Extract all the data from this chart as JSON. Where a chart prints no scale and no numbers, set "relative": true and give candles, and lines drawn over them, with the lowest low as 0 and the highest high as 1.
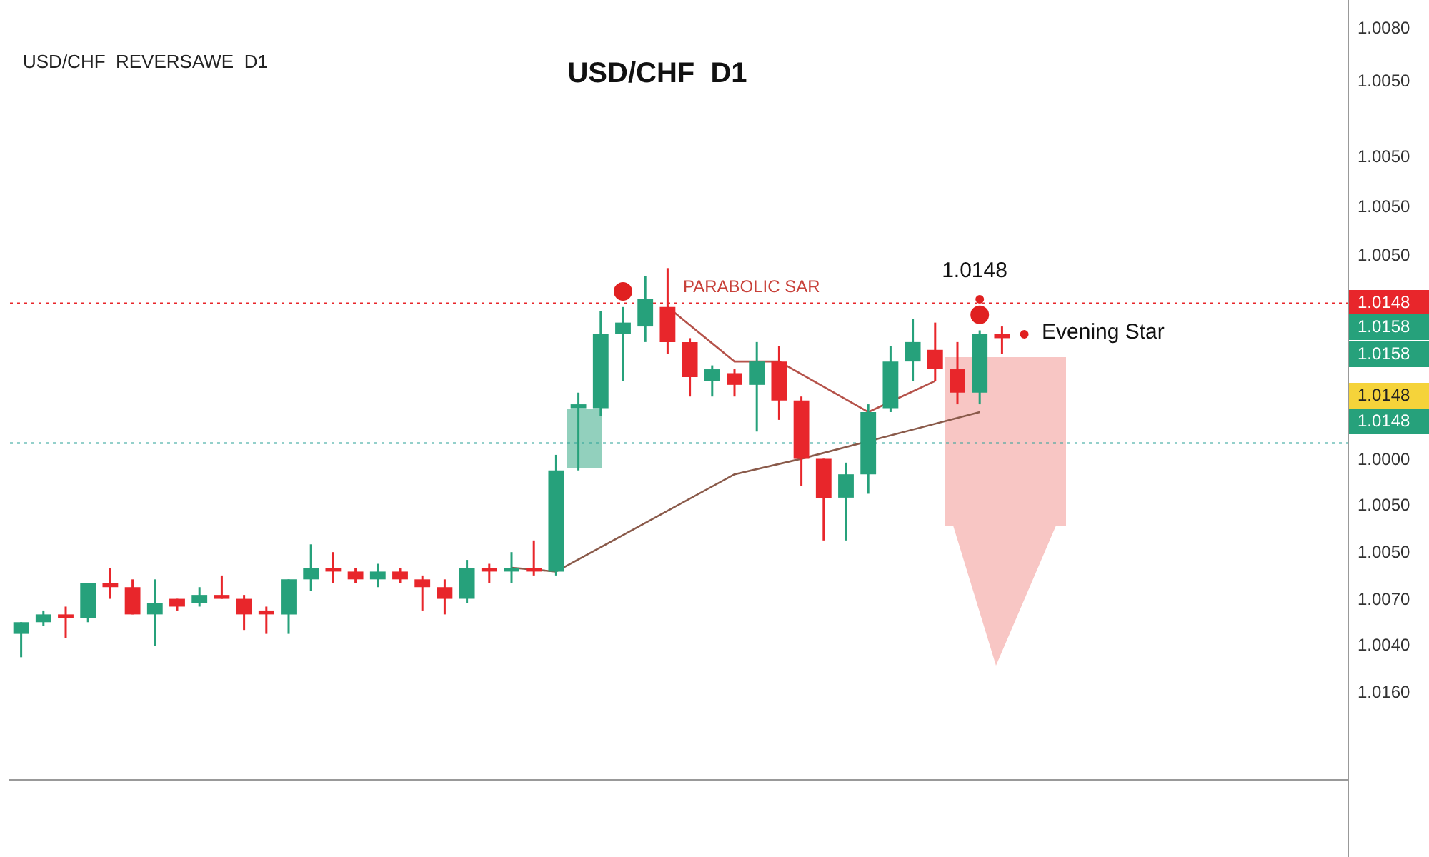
{
  "chart_data": {
    "type": "candlestick",
    "title": "USD/CHF  D1",
    "subtitle": "USD/CHF  REVERSAWE  D1",
    "relative": true,
    "categories": [
      null,
      null,
      null,
      null,
      null,
      null,
      null,
      null,
      null,
      null,
      null,
      null,
      null,
      null,
      null,
      null,
      null,
      null,
      null,
      null,
      null,
      null,
      null,
      null,
      null,
      null,
      null,
      null,
      null,
      null,
      null,
      null,
      null,
      null,
      null,
      null,
      null,
      null,
      null,
      null,
      null,
      null,
      null,
      null,
      null,
      null,
      null,
      null,
      null,
      null,
      null,
      null,
      null,
      null,
      null,
      null,
      null,
      null,
      null,
      null
    ],
    "ohlc": [
      [
        0.06,
        0.09,
        0,
        0.09
      ],
      [
        0.09,
        0.12,
        0.08,
        0.11
      ],
      [
        0.11,
        0.13,
        0.05,
        0.1
      ],
      [
        0.1,
        0.19,
        0.09,
        0.19
      ],
      [
        0.19,
        0.23,
        0.15,
        0.18
      ],
      [
        0.18,
        0.2,
        0.11,
        0.11
      ],
      [
        0.11,
        0.2,
        0.03,
        0.14
      ],
      [
        0.15,
        0.15,
        0.12,
        0.13
      ],
      [
        0.14,
        0.18,
        0.13,
        0.16
      ],
      [
        0.16,
        0.21,
        0.15,
        0.15
      ],
      [
        0.15,
        0.16,
        0.07,
        0.11
      ],
      [
        0.12,
        0.13,
        0.06,
        0.11
      ],
      [
        0.11,
        0.2,
        0.06,
        0.2
      ],
      [
        0.2,
        0.29,
        0.17,
        0.23
      ],
      [
        0.23,
        0.27,
        0.19,
        0.22
      ],
      [
        0.22,
        0.23,
        0.19,
        0.2
      ],
      [
        0.2,
        0.24,
        0.18,
        0.22
      ],
      [
        0.22,
        0.23,
        0.19,
        0.2
      ],
      [
        0.2,
        0.21,
        0.12,
        0.18
      ],
      [
        0.18,
        0.2,
        0.11,
        0.15
      ],
      [
        0.15,
        0.25,
        0.14,
        0.23
      ],
      [
        0.23,
        0.24,
        0.19,
        0.22
      ],
      [
        0.22,
        0.27,
        0.19,
        0.23
      ],
      [
        0.23,
        0.3,
        0.21,
        0.22
      ],
      [
        0.22,
        0.52,
        0.21,
        0.48
      ],
      [
        0.64,
        0.68,
        0.48,
        0.65
      ],
      [
        0.64,
        0.89,
        0.62,
        0.83
      ],
      [
        0.83,
        0.9,
        0.71,
        0.86
      ],
      [
        0.85,
        0.98,
        0.81,
        0.92
      ],
      [
        0.9,
        1,
        0.78,
        0.81
      ],
      [
        0.81,
        0.82,
        0.67,
        0.72
      ],
      [
        0.71,
        0.75,
        0.67,
        0.74
      ],
      [
        0.73,
        0.74,
        0.67,
        0.7
      ],
      [
        0.7,
        0.81,
        0.58,
        0.76
      ],
      [
        0.76,
        0.8,
        0.61,
        0.66
      ],
      [
        0.66,
        0.67,
        0.44,
        0.51
      ],
      [
        0.51,
        0.51,
        0.3,
        0.41
      ],
      [
        0.41,
        0.5,
        0.3,
        0.47
      ],
      [
        0.47,
        0.65,
        0.42,
        0.63
      ],
      [
        0.64,
        0.8,
        0.63,
        0.76
      ],
      [
        0.76,
        0.87,
        0.71,
        0.81
      ],
      [
        0.79,
        0.86,
        0.71,
        0.74
      ],
      [
        0.74,
        0.81,
        0.65,
        0.68
      ],
      [
        0.68,
        0.84,
        0.65,
        0.83
      ],
      [
        0.83,
        0.85,
        0.78,
        0.82
      ],
      null,
      null,
      null,
      null,
      null,
      null,
      null,
      null,
      null,
      null,
      null,
      null,
      null,
      null,
      null
    ],
    "colors": [
      "#26a17b",
      "#26a17b",
      "#e8262b",
      "#26a17b",
      "#e8262b",
      "#e8262b",
      "#26a17b",
      "#e8262b",
      "#26a17b",
      "#e8262b",
      "#e8262b",
      "#e8262b",
      "#26a17b",
      "#26a17b",
      "#e8262b",
      "#e8262b",
      "#26a17b",
      "#e8262b",
      "#e8262b",
      "#e8262b",
      "#26a17b",
      "#e8262b",
      "#26a17b",
      "#e8262b",
      "#26a17b",
      "#26a17b",
      "#26a17b",
      "#26a17b",
      "#26a17b",
      "#e8262b",
      "#e8262b",
      "#26a17b",
      "#e8262b",
      "#26a17b",
      "#e8262b",
      "#e8262b",
      "#e8262b",
      "#26a17b",
      "#26a17b",
      "#26a17b",
      "#26a17b",
      "#e8262b",
      "#e8262b",
      "#26a17b",
      "#e8262b",
      null,
      null,
      null,
      null,
      null,
      null,
      null,
      null,
      null,
      null,
      null,
      null,
      null,
      null,
      null
    ],
    "series": [
      {
        "type": "line",
        "color": "#b5524a",
        "values": [
          null,
          null,
          null,
          null,
          null,
          null,
          null,
          null,
          null,
          null,
          null,
          null,
          null,
          null,
          null,
          null,
          null,
          null,
          null,
          null,
          null,
          null,
          null,
          null,
          null,
          null,
          null,
          null,
          null,
          0.9,
          null,
          null,
          0.76,
          null,
          0.76,
          null,
          null,
          null,
          0.63,
          null,
          null,
          0.71,
          null,
          null,
          null,
          null,
          null,
          null,
          null,
          null,
          null,
          null,
          null,
          null,
          null,
          null,
          null,
          null,
          null,
          null
        ]
      },
      {
        "type": "line",
        "color": "#8a5a4a",
        "values": [
          null,
          null,
          null,
          null,
          null,
          null,
          null,
          null,
          null,
          null,
          null,
          null,
          null,
          null,
          null,
          null,
          null,
          null,
          null,
          null,
          null,
          null,
          0.23,
          null,
          0.22,
          null,
          null,
          null,
          null,
          null,
          null,
          null,
          0.47,
          null,
          null,
          0.51,
          null,
          null,
          null,
          null,
          null,
          null,
          null,
          0.63,
          null,
          null,
          null,
          null,
          null,
          null,
          null,
          null,
          null,
          null,
          null,
          null,
          null,
          null,
          null,
          null
        ]
      },
      {
        "type": "scatter",
        "color": "#e02020",
        "marker": "circle",
        "values": [
          null,
          null,
          null,
          null,
          null,
          null,
          null,
          null,
          null,
          null,
          null,
          null,
          null,
          null,
          null,
          null,
          null,
          null,
          null,
          null,
          null,
          null,
          null,
          null,
          null,
          null,
          null,
          0.94,
          null,
          null,
          null,
          null,
          null,
          null,
          null,
          null,
          null,
          null,
          null,
          null,
          null,
          null,
          null,
          0.88,
          null,
          null,
          null,
          null,
          null,
          null,
          null,
          null,
          null,
          null,
          null,
          null,
          null,
          null,
          null,
          null
        ]
      },
      {
        "type": "scatter",
        "color": "#e02020",
        "marker": "circle",
        "values": [
          null,
          null,
          null,
          null,
          null,
          null,
          null,
          null,
          null,
          null,
          null,
          null,
          null,
          null,
          null,
          null,
          null,
          null,
          null,
          null,
          null,
          null,
          null,
          null,
          null,
          null,
          null,
          null,
          null,
          null,
          null,
          null,
          null,
          null,
          null,
          null,
          null,
          null,
          null,
          null,
          null,
          null,
          null,
          0.92,
          null,
          0.83,
          null,
          null,
          null,
          null,
          null,
          null,
          null,
          null,
          null,
          null,
          null,
          null,
          null,
          null
        ]
      }
    ],
    "ref_lines": [
      {
        "axis": "y",
        "value": 0.91,
        "color": "#e8262b",
        "line_style": "dotted"
      },
      {
        "axis": "y",
        "value": 0.55,
        "color": "#2aa198",
        "line_style": "dotted"
      }
    ],
    "annotations": [
      "PARABOLIC SAR",
      "1.0148",
      "Evening Star",
      "1.0080",
      "1.0050",
      "1.0050",
      "1.0050",
      "1.0050",
      "1.0148",
      "1.0158",
      "1.0158",
      "1.0148",
      "1.0148",
      "1.0000",
      "1.0050",
      "1.0050",
      "1.0070",
      "1.0040",
      "1.0160"
    ]
  }
}
